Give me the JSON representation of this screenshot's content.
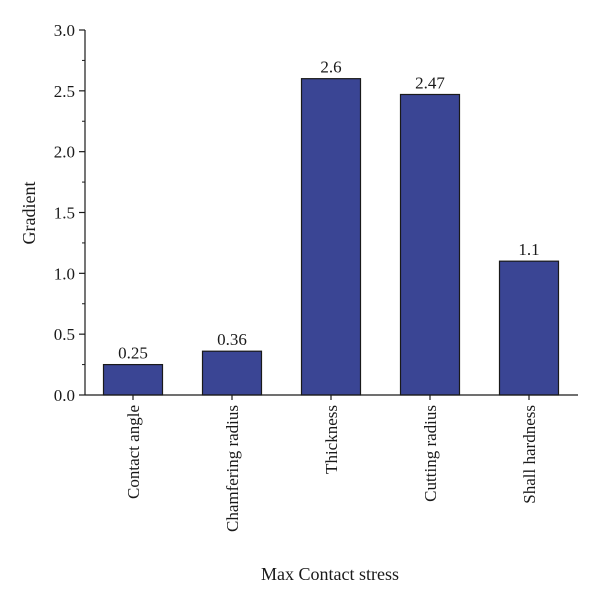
{
  "chart_data": {
    "type": "bar",
    "categories": [
      "Contact angle",
      "Chamfering radius",
      "Thickness",
      "Cutting radius",
      "Shall hardness"
    ],
    "values": [
      0.25,
      0.36,
      2.6,
      2.47,
      1.1
    ],
    "data_labels": [
      "0.25",
      "0.36",
      "2.6",
      "2.47",
      "1.1"
    ],
    "title": "",
    "xlabel": "Max Contact stress",
    "ylabel": "Gradient",
    "ylim": [
      0,
      3.0
    ],
    "yticks": [
      0.0,
      0.5,
      1.0,
      1.5,
      2.0,
      2.5,
      3.0
    ],
    "ytick_labels": [
      "0.0",
      "0.5",
      "1.0",
      "1.5",
      "2.0",
      "2.5",
      "3.0"
    ],
    "grid": false,
    "bar_color": "#3a4594",
    "bar_edge_color": "#1a1a1a"
  }
}
